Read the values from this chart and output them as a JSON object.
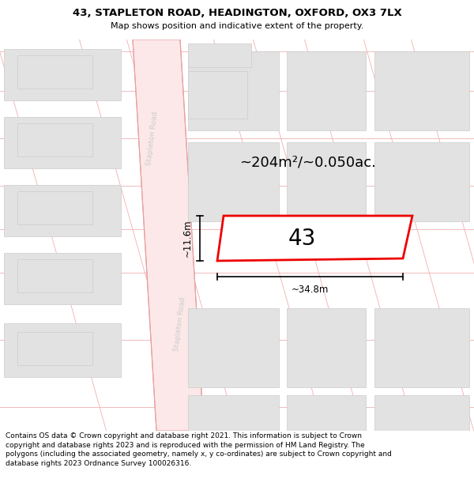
{
  "title_line1": "43, STAPLETON ROAD, HEADINGTON, OXFORD, OX3 7LX",
  "title_line2": "Map shows position and indicative extent of the property.",
  "copyright_text": "Contains OS data © Crown copyright and database right 2021. This information is subject to Crown copyright and database rights 2023 and is reproduced with the permission of HM Land Registry. The polygons (including the associated geometry, namely x, y co-ordinates) are subject to Crown copyright and database rights 2023 Ordnance Survey 100026316.",
  "map_bg": "#f7f7f7",
  "road_fill": "#fce8e8",
  "road_edge": "#e8a0a0",
  "road_center_line": "#e8a0a0",
  "building_fill": "#e2e2e2",
  "building_edge": "#cccccc",
  "plot_fill": "#ffffff",
  "plot_edge": "#ee0000",
  "grid_line_color": "#f0b0b0",
  "road_text_color": "#cccccc",
  "dim_color": "#111111",
  "area_text": "~204m²/~0.050ac.",
  "width_label": "~34.8m",
  "height_label": "~11.6m",
  "property_number": "43",
  "title_fontsize": 9.5,
  "subtitle_fontsize": 8.0,
  "footer_fontsize": 6.5,
  "area_fontsize": 13,
  "dim_fontsize": 8.5,
  "prop_num_fontsize": 20
}
